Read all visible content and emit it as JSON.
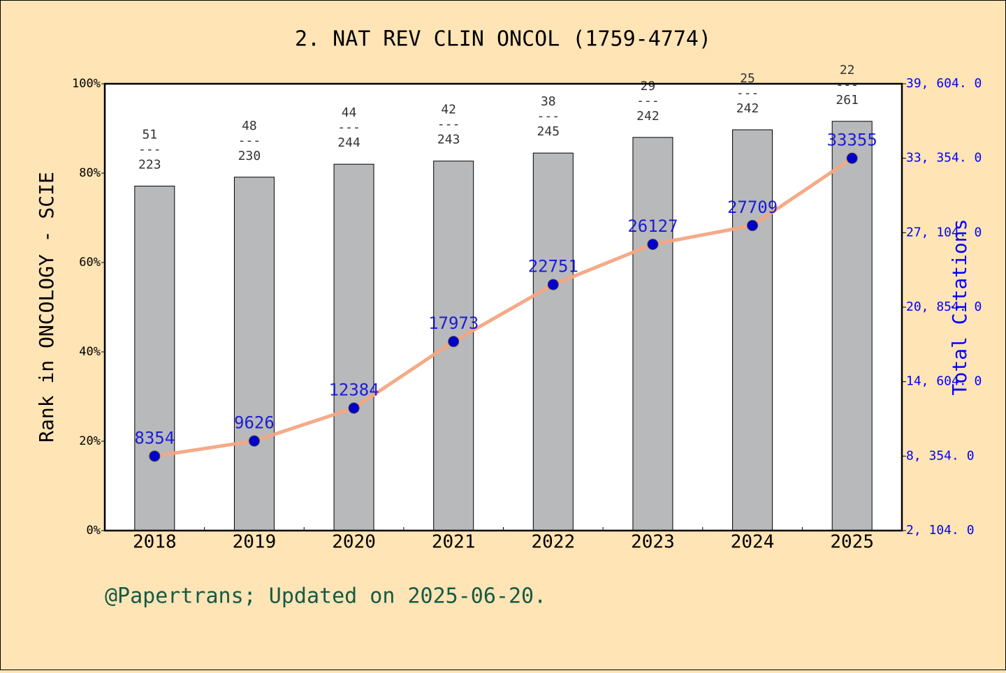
{
  "chart_data": {
    "type": "bar",
    "title": "2. NAT REV CLIN ONCOL (1759-4774)",
    "y_label": "Rank in ONCOLOGY - SCIE",
    "y2_label": "Total Citations",
    "footer": "@Papertrans; Updated on 2025-06-20.",
    "categories": [
      "2018",
      "2019",
      "2020",
      "2021",
      "2022",
      "2023",
      "2024",
      "2025"
    ],
    "ylim": [
      0,
      100
    ],
    "yticks": [
      {
        "value": 0,
        "label": "0%"
      },
      {
        "value": 20,
        "label": "20%"
      },
      {
        "value": 40,
        "label": "40%"
      },
      {
        "value": 60,
        "label": "60%"
      },
      {
        "value": 80,
        "label": "80%"
      },
      {
        "value": 100,
        "label": "100%"
      }
    ],
    "y2lim": [
      2104,
      39604
    ],
    "y2ticks": [
      {
        "value": 2104,
        "label": "2, 104. 0"
      },
      {
        "value": 8354,
        "label": "8, 354. 0"
      },
      {
        "value": 14604,
        "label": "14, 604. 0"
      },
      {
        "value": 20854,
        "label": "20, 854. 0"
      },
      {
        "value": 27104,
        "label": "27, 104. 0"
      },
      {
        "value": 33354,
        "label": "33, 354. 0"
      },
      {
        "value": 39604,
        "label": "39, 604. 0"
      }
    ],
    "label_separator": "---",
    "series": [
      {
        "type": "bar",
        "color": "#b8b9bb",
        "values": [
          77.1,
          79.1,
          82.0,
          82.7,
          84.5,
          88.0,
          89.7,
          91.6
        ],
        "rank_labels": [
          "51",
          "48",
          "44",
          "42",
          "38",
          "29",
          "25",
          "22"
        ],
        "total_labels": [
          "223",
          "230",
          "244",
          "243",
          "245",
          "242",
          "242",
          "261"
        ]
      },
      {
        "type": "line",
        "axis": "y2",
        "color": "#f4a582",
        "marker_color": "#0000cc",
        "label_color": "#0000dd",
        "values": [
          8354,
          9626,
          12384,
          17973,
          22751,
          26127,
          27709,
          33355
        ]
      }
    ]
  }
}
